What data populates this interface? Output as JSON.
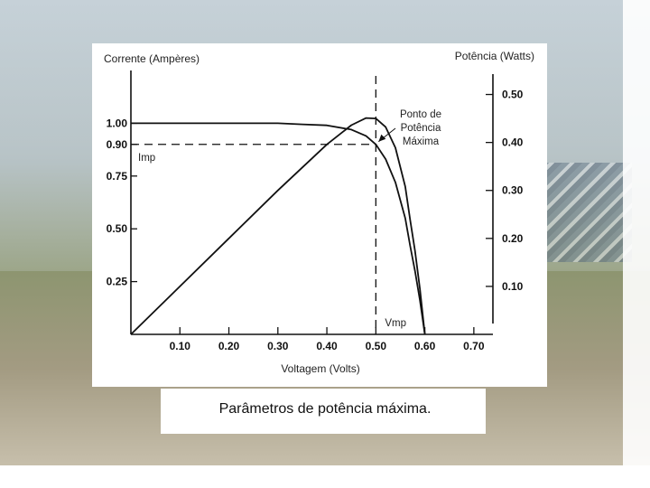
{
  "caption": "Parâmetros de potência máxima.",
  "chart_data": {
    "type": "line",
    "xlabel": "Voltagem (Volts)",
    "ylabel_left": "Corrente (Ampères)",
    "ylabel_right": "Potência (Watts)",
    "xlim": [
      0,
      0.75
    ],
    "ylim_left": [
      0,
      1.25
    ],
    "ylim_right": [
      0,
      0.55
    ],
    "x_ticks": [
      {
        "v": 0.1,
        "label": "0.10"
      },
      {
        "v": 0.2,
        "label": "0.20"
      },
      {
        "v": 0.3,
        "label": "0.30"
      },
      {
        "v": 0.4,
        "label": "0.40"
      },
      {
        "v": 0.5,
        "label": "0.50"
      },
      {
        "v": 0.6,
        "label": "0.60"
      },
      {
        "v": 0.7,
        "label": "0.70"
      }
    ],
    "y_left_ticks": [
      {
        "v": 1.0,
        "label": "1.00"
      },
      {
        "v": 0.9,
        "label": "0.90"
      },
      {
        "v": 0.75,
        "label": "0.75"
      },
      {
        "v": 0.5,
        "label": "0.50"
      },
      {
        "v": 0.25,
        "label": "0.25"
      }
    ],
    "y_right_ticks": [
      {
        "v": 0.5,
        "label": "0.50"
      },
      {
        "v": 0.4,
        "label": "0.40"
      },
      {
        "v": 0.3,
        "label": "0.30"
      },
      {
        "v": 0.2,
        "label": "0.20"
      },
      {
        "v": 0.1,
        "label": "0.10"
      }
    ],
    "series": [
      {
        "axis": "left",
        "x": [
          0,
          0.05,
          0.1,
          0.2,
          0.3,
          0.35,
          0.4,
          0.45,
          0.48,
          0.5,
          0.52,
          0.54,
          0.56,
          0.57,
          0.58,
          0.59,
          0.6
        ],
        "y": [
          1.0,
          1.0,
          1.0,
          1.0,
          1.0,
          0.995,
          0.99,
          0.97,
          0.94,
          0.9,
          0.83,
          0.72,
          0.55,
          0.42,
          0.3,
          0.16,
          0.0
        ]
      },
      {
        "axis": "right",
        "x": [
          0,
          0.1,
          0.2,
          0.3,
          0.4,
          0.45,
          0.48,
          0.5,
          0.52,
          0.54,
          0.56,
          0.57,
          0.58,
          0.59,
          0.6
        ],
        "y": [
          0,
          0.1,
          0.2,
          0.3,
          0.396,
          0.436,
          0.451,
          0.45,
          0.432,
          0.389,
          0.308,
          0.239,
          0.174,
          0.094,
          0.0
        ]
      }
    ],
    "reference_lines": {
      "imp": {
        "y": 0.9,
        "label": "Imp"
      },
      "vmp": {
        "x": 0.5,
        "label": "Vmp"
      }
    },
    "annotation": {
      "lines": [
        "Ponto de",
        "Potência",
        "Máxima"
      ],
      "x": 0.5,
      "y": 0.9
    }
  }
}
